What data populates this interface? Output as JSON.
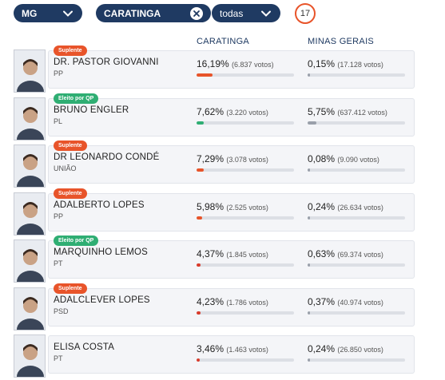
{
  "filters": {
    "state": "MG",
    "city": "CARATINGA",
    "option": "todas",
    "count": "17"
  },
  "columns": {
    "local": "CARATINGA",
    "state": "MINAS GERAIS"
  },
  "colors": {
    "nav": "#1f3a62",
    "suplente": "#e8542a",
    "eleito": "#2fae73",
    "bar_track": "#dcdfe5",
    "bar_state": "#9aa0aa"
  },
  "candidates": [
    {
      "badge": "Suplente",
      "badge_type": "sup",
      "name": "DR. PASTOR GIOVANNI",
      "party": "PP",
      "local_pct": "16,19%",
      "local_votes": "(6.837 votos)",
      "local_frac": 0.1619,
      "state_pct": "0,15%",
      "state_votes": "(17.128 votos)",
      "state_frac": 0.0015,
      "bar_color": "#e8542a"
    },
    {
      "badge": "Eleito por QP",
      "badge_type": "eleito",
      "name": "BRUNO ENGLER",
      "party": "PL",
      "local_pct": "7,62%",
      "local_votes": "(3.220 votos)",
      "local_frac": 0.0762,
      "state_pct": "5,75%",
      "state_votes": "(637.412 votos)",
      "state_frac": 0.0575,
      "bar_color": "#2fae73"
    },
    {
      "badge": "Suplente",
      "badge_type": "sup",
      "name": "DR LEONARDO CONDÉ",
      "party": "UNIÃO",
      "local_pct": "7,29%",
      "local_votes": "(3.078 votos)",
      "local_frac": 0.0729,
      "state_pct": "0,08%",
      "state_votes": "(9.090 votos)",
      "state_frac": 0.0008,
      "bar_color": "#e8542a"
    },
    {
      "badge": "Suplente",
      "badge_type": "sup",
      "name": "ADALBERTO LOPES",
      "party": "PP",
      "local_pct": "5,98%",
      "local_votes": "(2.525 votos)",
      "local_frac": 0.0598,
      "state_pct": "0,24%",
      "state_votes": "(26.634 votos)",
      "state_frac": 0.0024,
      "bar_color": "#e8542a"
    },
    {
      "badge": "Eleito por QP",
      "badge_type": "eleito",
      "name": "MARQUINHO LEMOS",
      "party": "PT",
      "local_pct": "4,37%",
      "local_votes": "(1.845 votos)",
      "local_frac": 0.0437,
      "state_pct": "0,63%",
      "state_votes": "(69.374 votos)",
      "state_frac": 0.0063,
      "bar_color": "#d93b2b"
    },
    {
      "badge": "Suplente",
      "badge_type": "sup",
      "name": "ADALCLEVER LOPES",
      "party": "PSD",
      "local_pct": "4,23%",
      "local_votes": "(1.786 votos)",
      "local_frac": 0.0423,
      "state_pct": "0,37%",
      "state_votes": "(40.974 votos)",
      "state_frac": 0.0037,
      "bar_color": "#d93b2b"
    },
    {
      "badge": "",
      "badge_type": "",
      "name": "ELISA COSTA",
      "party": "PT",
      "local_pct": "3,46%",
      "local_votes": "(1.463 votos)",
      "local_frac": 0.0346,
      "state_pct": "0,24%",
      "state_votes": "(26.850 votos)",
      "state_frac": 0.0024,
      "bar_color": "#d93b2b"
    }
  ]
}
